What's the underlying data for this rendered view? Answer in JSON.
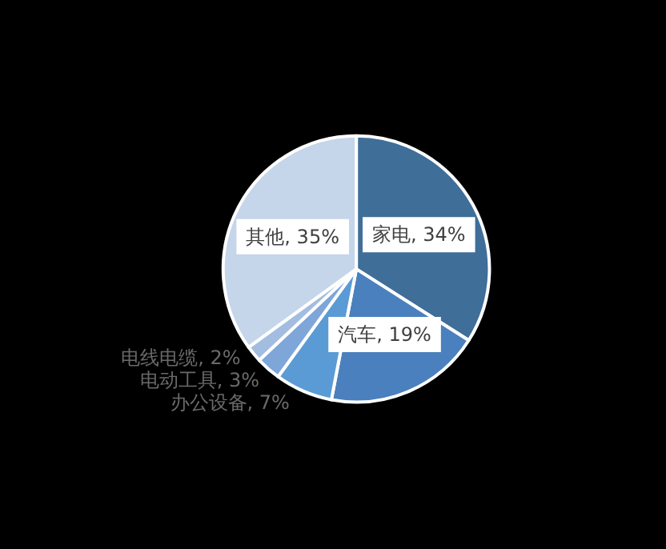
{
  "chart_data": {
    "type": "pie",
    "categories": [
      "家电",
      "汽车",
      "办公设备",
      "电动工具",
      "电线电缆",
      "其他"
    ],
    "values": [
      34,
      19,
      7,
      3,
      2,
      35
    ],
    "colors": [
      "#3f6e99",
      "#4a80bd",
      "#5b9bd5",
      "#7ea6d8",
      "#a3bde0",
      "#c5d5ea"
    ],
    "value_labels": [
      ", 34%",
      ", 19%",
      ", 7%",
      ", 3%",
      ", 2%",
      ", 35%"
    ]
  }
}
